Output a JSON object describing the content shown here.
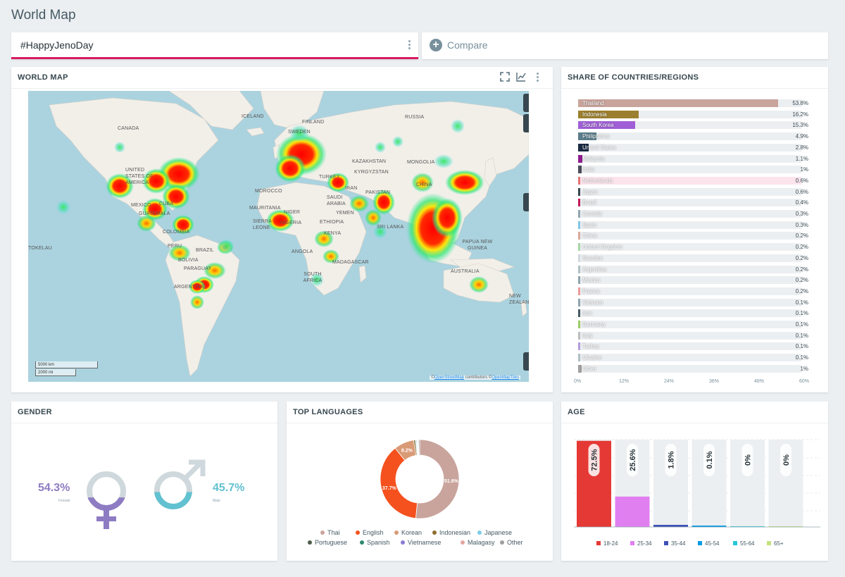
{
  "page": {
    "title": "World Map"
  },
  "query": {
    "hashtag": "#HappyJenoDay"
  },
  "compare": {
    "label": "Compare",
    "icon": "plus-circle-icon"
  },
  "world_map": {
    "title": "WORLD MAP",
    "toolbar_icons": [
      "fullscreen-icon",
      "chart-line-icon",
      "more-vert-icon"
    ],
    "labels": [
      "ICELAND",
      "FINLAND",
      "RUSSIA",
      "SWEDEN",
      "CANADA",
      "KAZAKHSTAN",
      "MONGOLIA",
      "KYRGYZSTAN",
      "UNITED STATES OF AMERICA",
      "TURKEY",
      "IRAN",
      "MOROCCO",
      "SAUDI ARABIA",
      "PAKISTAN",
      "CHINA",
      "MAURITANIA",
      "NIGER",
      "YEMEN",
      "SIERRA LEONE",
      "NIGERIA",
      "ETHIOPIA",
      "KENYA",
      "SRI LANKA",
      "MEXICO",
      "CUBA",
      "GUATEMALA",
      "COLOMBIA",
      "PERU",
      "BRAZIL",
      "BOLIVIA",
      "PARAGUAY",
      "ARGENTINA",
      "ANGOLA",
      "MADAGASCAR",
      "SOUTH AFRICA",
      "PAPUA NEW GUINEA",
      "AUSTRALIA",
      "NEW ZEALAND",
      "TOKELAU"
    ],
    "scale_km": "5000 km",
    "scale_mi": "2000 mi",
    "attribution_prefix": "©",
    "attribution_osm": "OpenStreetMap",
    "attribution_mid": " contributors  ©",
    "attribution_tiles": "OpenMapTiles"
  },
  "share": {
    "title": "SHARE OF COUNTRIES/REGIONS",
    "xaxis_ticks": [
      "0%",
      "12%",
      "24%",
      "36%",
      "48%",
      "60%"
    ]
  },
  "gender": {
    "title": "GENDER",
    "female_pct": "54.3%",
    "female_label": "Female",
    "male_pct": "45.7%",
    "male_label": "Male",
    "female_fraction": 0.543,
    "male_fraction": 0.457,
    "female_color": "#8e7cc3",
    "male_color": "#62c1d0"
  },
  "languages": {
    "title": "TOP LANGUAGES"
  },
  "age": {
    "title": "AGE"
  },
  "chart_data": [
    {
      "type": "bar",
      "orientation": "horizontal",
      "title": "SHARE OF COUNTRIES/REGIONS",
      "xlim": [
        0,
        60
      ],
      "categories": [
        "Thailand",
        "Indonesia",
        "South Korea",
        "Philippines",
        "United States",
        "Malaysia",
        "India",
        "Netherlands",
        "Japan",
        "Brazil",
        "Canada",
        "Spain",
        "China",
        "United Kingdom",
        "Sweden",
        "Argentina",
        "Mexico",
        "France",
        "Vietnam",
        "Iran",
        "Germany",
        "Italy",
        "Turkey",
        "Ukraine",
        "Other"
      ],
      "values": [
        53.8,
        16.2,
        15.3,
        4.9,
        2.8,
        1.1,
        1,
        0.6,
        0.6,
        0.4,
        0.3,
        0.3,
        0.2,
        0.2,
        0.2,
        0.2,
        0.2,
        0.2,
        0.1,
        0.1,
        0.1,
        0.1,
        0.1,
        0.1,
        1
      ],
      "labels": [
        "53.8%",
        "16.2%",
        "15.3%",
        "4.9%",
        "2.8%",
        "1.1%",
        "1%",
        "0.6%",
        "0.6%",
        "0.4%",
        "0.3%",
        "0.3%",
        "0.2%",
        "0.2%",
        "0.2%",
        "0.2%",
        "0.2%",
        "0.2%",
        "0.1%",
        "0.1%",
        "0.1%",
        "0.1%",
        "0.1%",
        "0.1%",
        "1%"
      ],
      "colors": [
        "#c9a49c",
        "#9c7f2e",
        "#9f5fd6",
        "#5b7d8c",
        "#1a2a44",
        "#8e1c8e",
        "#4a4a5a",
        "#e57373",
        "#37474f",
        "#c2185b",
        "#90a4ae",
        "#81c6e8",
        "#d8a99a",
        "#a5d6a7",
        "#cfd8dc",
        "#b0bec5",
        "#90a4ae",
        "#ef9a9a",
        "#90a4ae",
        "#455a64",
        "#9ccc65",
        "#bdbdbd",
        "#b39ddb",
        "#b0bec5",
        "#9e9e9e"
      ]
    },
    {
      "type": "pie",
      "title": "TOP LANGUAGES",
      "categories": [
        "Thai",
        "English",
        "Korean",
        "Indonesian",
        "Japanese",
        "Portuguese",
        "Spanish",
        "Vietnamese",
        "Malagasy",
        "Other"
      ],
      "values": [
        51.6,
        37.7,
        8.2,
        0.7,
        0.4,
        0.3,
        0.2,
        0.2,
        0.2,
        0.5
      ],
      "labels": [
        "51.6%",
        "37.7%",
        "8.2%",
        "",
        "",
        "",
        "",
        "",
        "",
        ""
      ],
      "colors": [
        "#c9a49c",
        "#f4511e",
        "#d99a76",
        "#8d6e2e",
        "#7ccbe8",
        "#4e5d4a",
        "#2e8b6e",
        "#8a7bd6",
        "#e2a7a0",
        "#9e9e9e"
      ]
    },
    {
      "type": "bar",
      "title": "AGE",
      "ylim": [
        0,
        100
      ],
      "categories": [
        "18-24",
        "25-34",
        "35-44",
        "45-54",
        "55-64",
        "65+"
      ],
      "values": [
        72.5,
        25.6,
        1.8,
        0.1,
        0,
        0
      ],
      "labels": [
        "72.5%",
        "25.6%",
        "1.8%",
        "0.1%",
        "0%",
        "0%"
      ],
      "colors": [
        "#e53935",
        "#e080f0",
        "#3f51b5",
        "#039be5",
        "#26c6da",
        "#c5e17a"
      ]
    }
  ]
}
